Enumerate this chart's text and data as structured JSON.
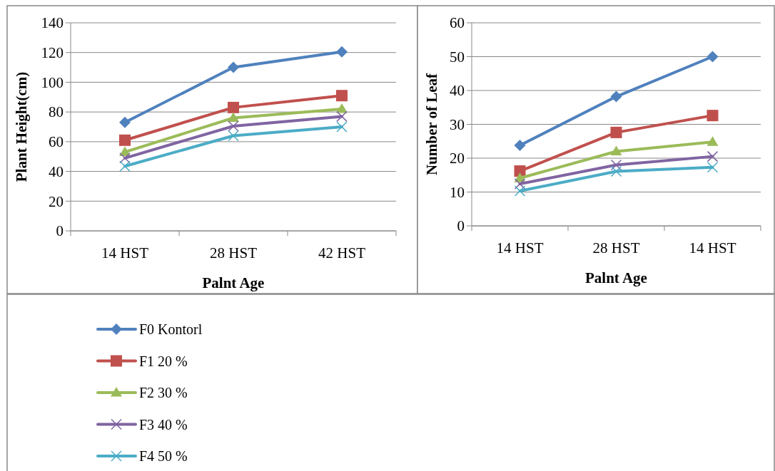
{
  "chart_data": [
    {
      "type": "line",
      "ylabel": "Plant Height(cm)",
      "xlabel": "Palnt Age",
      "categories": [
        "14 HST",
        "28 HST",
        "42 HST"
      ],
      "ylim": [
        0,
        140
      ],
      "yticks": [
        0,
        20,
        40,
        60,
        80,
        100,
        120,
        140
      ],
      "grid": "y",
      "legend": "bottom",
      "line_style": "solid",
      "series": [
        {
          "name": "F0 Kontorl",
          "color": "#4f81bd",
          "marker": "diamond",
          "values": [
            73,
            110,
            120.5
          ]
        },
        {
          "name": "F1 20 %",
          "color": "#c0504d",
          "marker": "square",
          "values": [
            61,
            83,
            91
          ]
        },
        {
          "name": "F2 30 %",
          "color": "#9bbb59",
          "marker": "triangle",
          "values": [
            53,
            76,
            82
          ]
        },
        {
          "name": "F3 40 %",
          "color": "#8064a2",
          "marker": "cross",
          "values": [
            49,
            70.5,
            77
          ]
        },
        {
          "name": "F4 50 %",
          "color": "#4bacc6",
          "marker": "cross",
          "values": [
            43.5,
            64,
            70
          ]
        }
      ]
    },
    {
      "type": "line",
      "ylabel": "Number of Leaf",
      "xlabel": "Palnt Age",
      "categories": [
        "14 HST",
        "28 HST",
        "14 HST"
      ],
      "ylim": [
        0,
        60
      ],
      "yticks": [
        0,
        10,
        20,
        30,
        40,
        50,
        60
      ],
      "grid": "y",
      "legend": "bottom",
      "line_style": "solid",
      "series": [
        {
          "name": "F0 Kontorl",
          "color": "#4f81bd",
          "marker": "diamond",
          "values": [
            23.8,
            38.2,
            50
          ]
        },
        {
          "name": "F1 20 %",
          "color": "#c0504d",
          "marker": "square",
          "values": [
            16.2,
            27.6,
            32.6
          ]
        },
        {
          "name": "F2 30 %",
          "color": "#9bbb59",
          "marker": "triangle",
          "values": [
            14.1,
            22,
            24.8
          ]
        },
        {
          "name": "F3 40 %",
          "color": "#8064a2",
          "marker": "cross",
          "values": [
            12.4,
            18,
            20.5
          ]
        },
        {
          "name": "F4 50 %",
          "color": "#4bacc6",
          "marker": "cross",
          "values": [
            10.3,
            16.1,
            17.3
          ]
        }
      ]
    }
  ]
}
